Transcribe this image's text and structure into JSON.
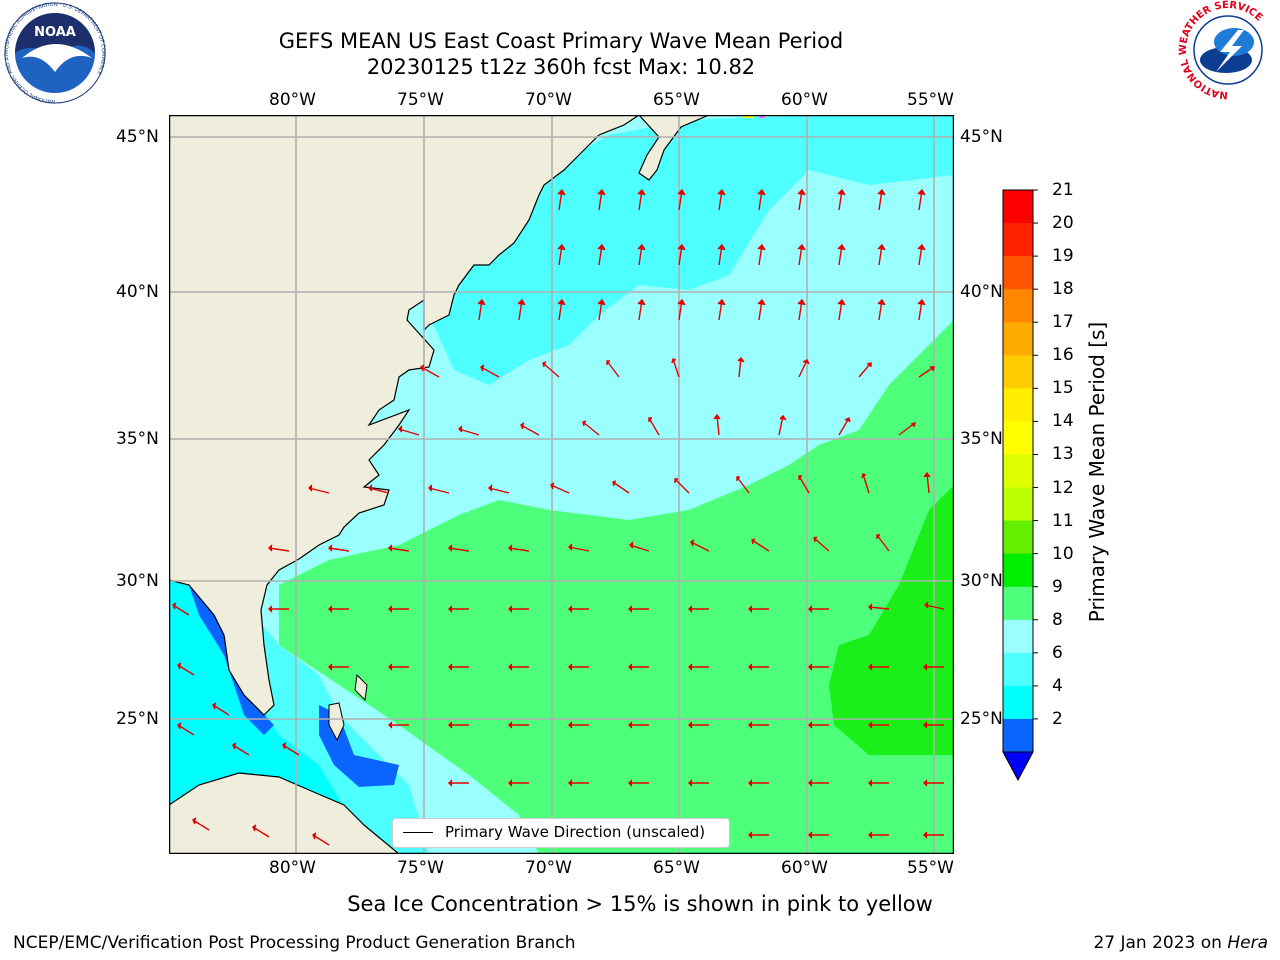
{
  "title": {
    "line1": "GEFS MEAN US East Coast Primary Wave Mean Period",
    "line2": "20230125 t12z 360h fcst   Max: 10.82"
  },
  "map": {
    "lon_ticks_top": [
      "80°W",
      "75°W",
      "70°W",
      "65°W",
      "60°W",
      "55°W"
    ],
    "lon_ticks_bottom": [
      "80°W",
      "75°W",
      "70°W",
      "65°W",
      "60°W",
      "55°W"
    ],
    "lat_ticks_left": [
      "45°N",
      "40°N",
      "35°N",
      "30°N",
      "25°N"
    ],
    "lat_ticks_right": [
      "45°N",
      "40°N",
      "35°N",
      "30°N",
      "25°N"
    ],
    "lon_range": [
      -85,
      -54.5
    ],
    "lat_range": [
      20.5,
      45.8
    ],
    "legend_label": "Primary Wave Direction (unscaled)",
    "colors": {
      "land": "#efeedc",
      "grid": "#b0b0b0",
      "arrow": "#e60000",
      "period_2_4": "#0a64ff",
      "period_4_6": "#00ffff",
      "period_6_8": "#4dffff",
      "period_8_9": "#99ffff",
      "period_9_10": "#4dff7a",
      "period_10_11": "#1aef1a"
    }
  },
  "colorbar": {
    "title": "Primary Wave Mean Period [s]",
    "labels": [
      "21",
      "20",
      "19",
      "18",
      "17",
      "16",
      "15",
      "14",
      "13",
      "12",
      "11",
      "10",
      "9",
      "8",
      "6",
      "4",
      "2"
    ],
    "colors_top_to_bottom": [
      "#ff0000",
      "#ff2200",
      "#ff5500",
      "#ff8800",
      "#ffaa00",
      "#ffcc00",
      "#ffee00",
      "#ffff00",
      "#ddff00",
      "#bbff00",
      "#66ee00",
      "#00ee00",
      "#4dff7a",
      "#99ffff",
      "#4dffff",
      "#00ffff",
      "#0a64ff"
    ],
    "extend_color": "#0000ff"
  },
  "footer": {
    "note": "Sea Ice Concentration > 15% is shown in pink to yellow",
    "left_credit": "NCEP/EMC/Verification Post Processing Product Generation Branch",
    "right_date": "27 Jan 2023 on ",
    "right_machine": "Hera"
  },
  "logos": {
    "noaa_text": "NOAA",
    "noaa_ring": "NATIONAL OCEANIC AND ATMOSPHERIC ADMINISTRATION · U.S. DEPARTMENT OF COMMERCE",
    "nws_ring": "NATIONAL WEATHER SERVICE"
  }
}
